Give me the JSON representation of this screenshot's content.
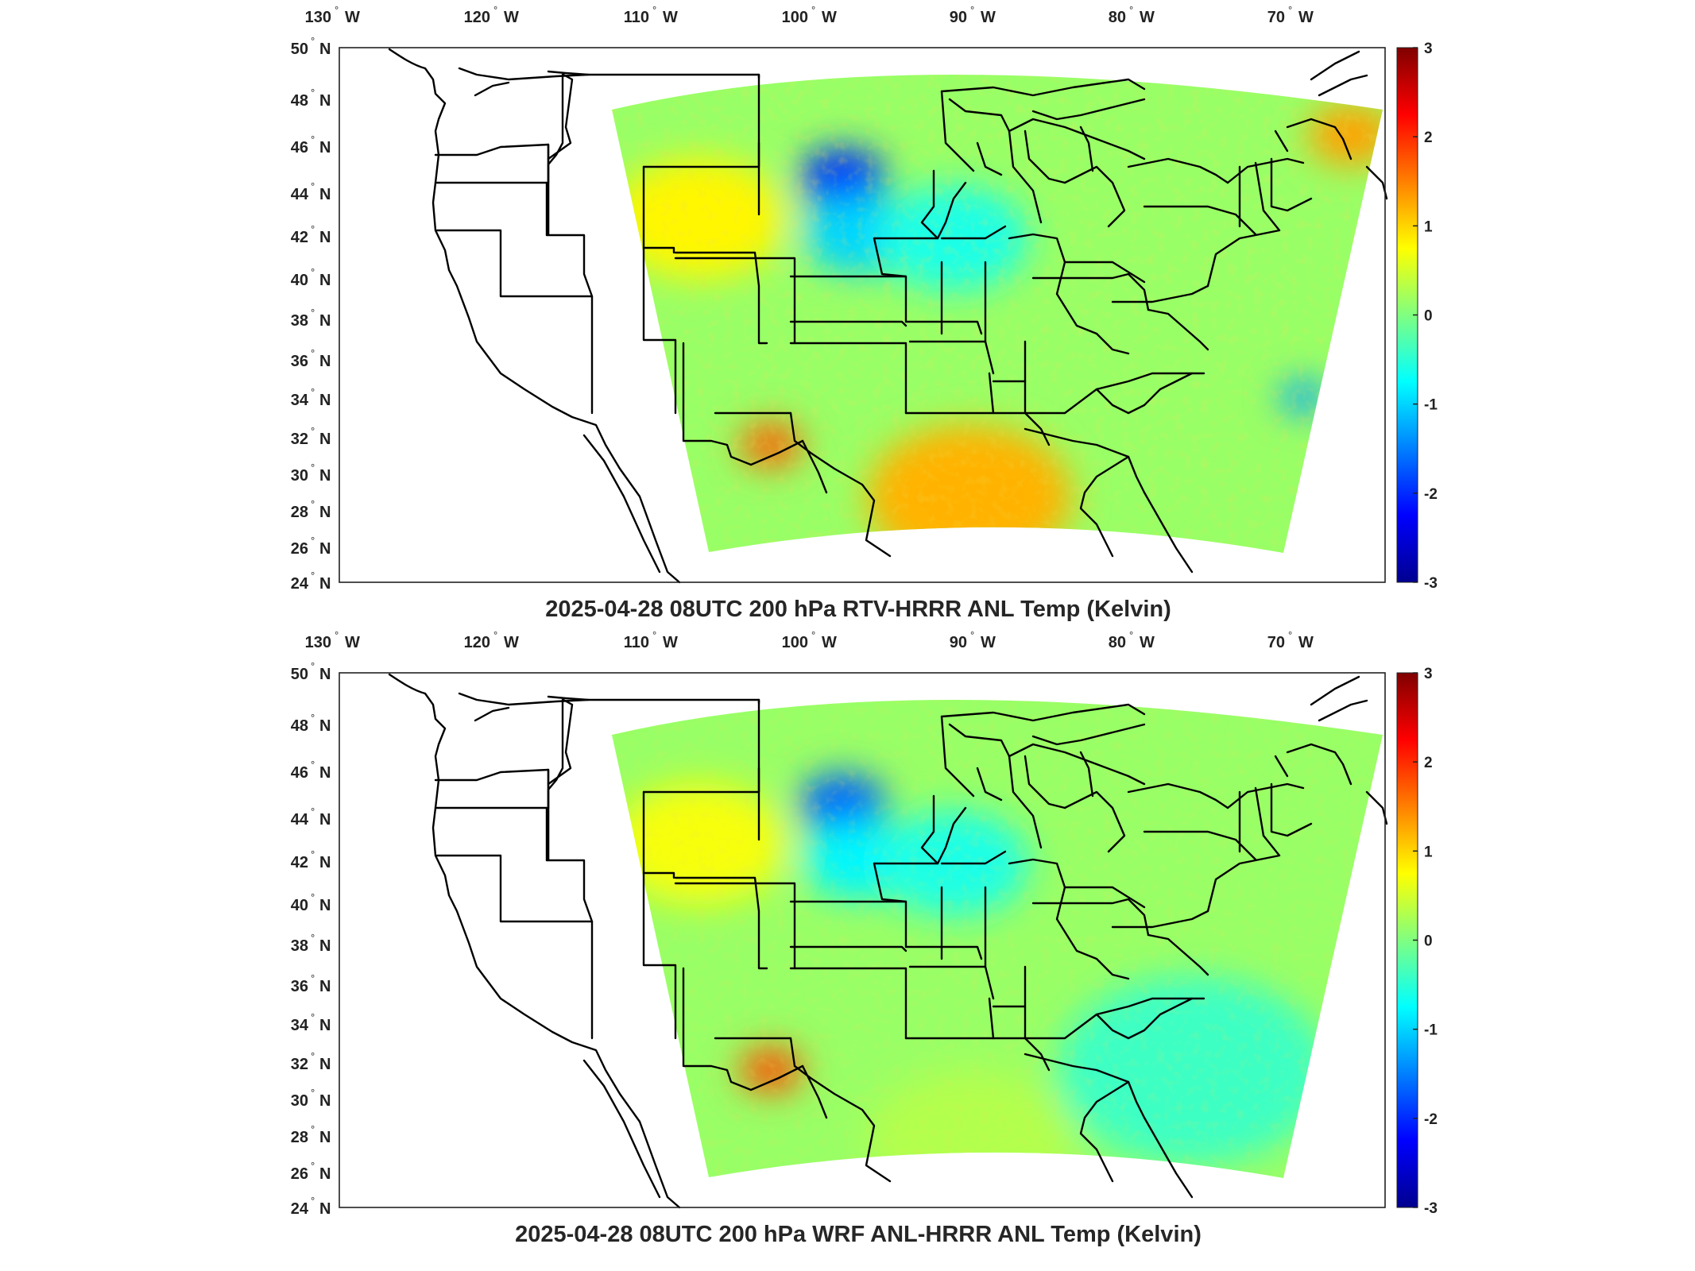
{
  "panels": [
    {
      "title": "2025-04-28 08UTC 200 hPa RTV-HRRR ANL Temp (Kelvin)",
      "lon_labels": [
        "130",
        "120",
        "110",
        "100",
        "90",
        "80",
        "70"
      ],
      "lat_labels": [
        "50",
        "48",
        "46",
        "44",
        "42",
        "40",
        "38",
        "36",
        "34",
        "32",
        "30",
        "28",
        "26",
        "24"
      ],
      "colorbar_ticks": [
        "3",
        "2",
        "1",
        "0",
        "-1",
        "-2",
        "-3"
      ],
      "features": [
        {
          "name": "wyoming-warm-anomaly",
          "value": 0.8
        },
        {
          "name": "south-dakota-cold-anomaly",
          "value": -2.0
        },
        {
          "name": "nebraska-cold-anomaly",
          "value": -1.0
        },
        {
          "name": "iowa-cool-anomaly",
          "value": -0.6
        },
        {
          "name": "west-texas-warm-anomaly",
          "value": 1.7
        },
        {
          "name": "gulf-coast-warm-anomaly",
          "value": 1.2
        },
        {
          "name": "maine-warm-anomaly",
          "value": 1.3
        },
        {
          "name": "atlantic-cold-anomaly",
          "value": -1.3
        }
      ]
    },
    {
      "title": "2025-04-28 08UTC 200 hPa WRF ANL-HRRR ANL Temp (Kelvin)",
      "lon_labels": [
        "130",
        "120",
        "110",
        "100",
        "90",
        "80",
        "70"
      ],
      "lat_labels": [
        "50",
        "48",
        "46",
        "44",
        "42",
        "40",
        "38",
        "36",
        "34",
        "32",
        "30",
        "28",
        "26",
        "24"
      ],
      "colorbar_ticks": [
        "3",
        "2",
        "1",
        "0",
        "-1",
        "-2",
        "-3"
      ],
      "features": [
        {
          "name": "wyoming-warm-anomaly",
          "value": 0.7
        },
        {
          "name": "south-dakota-cold-anomaly",
          "value": -1.7
        },
        {
          "name": "nebraska-cold-anomaly",
          "value": -0.8
        },
        {
          "name": "iowa-cool-anomaly",
          "value": -0.6
        },
        {
          "name": "west-texas-warm-anomaly",
          "value": 1.8
        },
        {
          "name": "southeast-cool-anomaly",
          "value": -0.4
        },
        {
          "name": "gulf-coast-mild-anomaly",
          "value": 0.3
        }
      ]
    }
  ],
  "units": {
    "lon": "W",
    "lat": "N"
  },
  "colormap": [
    "#00008f",
    "#0000ff",
    "#0080ff",
    "#00ffff",
    "#80ff80",
    "#ffff00",
    "#ff8000",
    "#ff0000",
    "#800000"
  ],
  "colorbar_range": [
    -3,
    3
  ],
  "base_value": 0.15
}
